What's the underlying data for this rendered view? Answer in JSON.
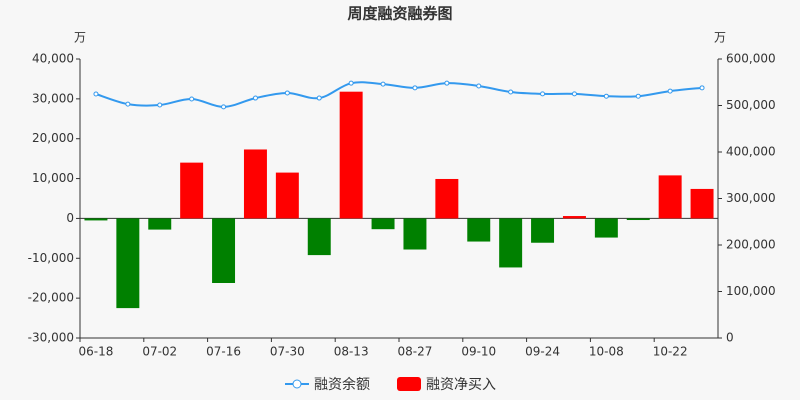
{
  "chart_data": {
    "type": "bar_line",
    "title": "周度融资融券图",
    "y_unit": "万",
    "y2_unit": "万",
    "categories": [
      "06-18",
      null,
      "07-02",
      null,
      "07-16",
      null,
      "07-30",
      null,
      "08-13",
      null,
      "08-27",
      null,
      "09-10",
      null,
      "09-24",
      null,
      "10-08",
      null,
      "10-22",
      null
    ],
    "series": [
      {
        "name": "融资余额",
        "type": "line",
        "axis": "y2",
        "color": "#3399ee",
        "values": [
          524700,
          503000,
          501000,
          514000,
          497000,
          516000,
          527000,
          516000,
          548000,
          546000,
          538000,
          548000,
          542000,
          529000,
          525000,
          525000,
          520000,
          520000,
          531000,
          538000
        ]
      },
      {
        "name": "融资净买入",
        "type": "bar",
        "axis": "y",
        "color": "#ff0000",
        "negative_color": "#008000",
        "values": [
          -500,
          -22500,
          -2800,
          14000,
          -16200,
          17300,
          11500,
          -9200,
          31800,
          -2700,
          -7800,
          9900,
          -5800,
          -12300,
          -6100,
          600,
          -4800,
          -400,
          10800,
          7400
        ]
      }
    ],
    "ylim": [
      -30000,
      40000
    ],
    "yticks": [
      {
        "value": -30000,
        "label": "-30,000"
      },
      {
        "value": -20000,
        "label": "-20,000"
      },
      {
        "value": -10000,
        "label": "-10,000"
      },
      0,
      {
        "value": 10000,
        "label": "10,000"
      },
      {
        "value": 20000,
        "label": "20,000"
      },
      {
        "value": 30000,
        "label": "30,000"
      },
      {
        "value": 40000,
        "label": "40,000"
      }
    ],
    "y2lim": [
      0,
      600000
    ],
    "y2ticks": [
      0,
      {
        "value": 100000,
        "label": "100,000"
      },
      {
        "value": 200000,
        "label": "200,000"
      },
      {
        "value": 300000,
        "label": "300,000"
      },
      {
        "value": 400000,
        "label": "400,000"
      },
      {
        "value": 500000,
        "label": "500,000"
      },
      {
        "value": 600000,
        "label": "600,000"
      }
    ],
    "grid": false
  }
}
